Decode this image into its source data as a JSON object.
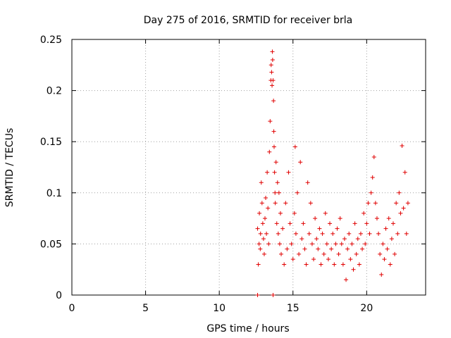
{
  "chart_data": {
    "type": "scatter",
    "title": "Day 275 of 2016, SRMTID for receiver brla",
    "xlabel": "GPS time / hours",
    "ylabel": "SRMTID / TECUs",
    "xlim": [
      0,
      24
    ],
    "ylim": [
      0,
      0.25
    ],
    "xticks": [
      0,
      5,
      10,
      15,
      20
    ],
    "xtick_labels": [
      "0",
      "5",
      "10",
      "15",
      "20"
    ],
    "yticks": [
      0,
      0.05,
      0.1,
      0.15,
      0.2,
      0.25
    ],
    "ytick_labels": [
      "0",
      "0.05",
      "0.1",
      "0.15",
      "0.2",
      "0.25"
    ],
    "grid": true,
    "legend": "none",
    "marker": "plus",
    "color": "#e00000",
    "series": [
      {
        "x": [
          12.6,
          12.6,
          12.65,
          12.7,
          12.72,
          12.78,
          12.8,
          12.85,
          12.9,
          12.95,
          13.0,
          13.05,
          13.1,
          13.15,
          13.2,
          13.25,
          13.3,
          13.35,
          13.4,
          13.45,
          13.5,
          13.52,
          13.55,
          13.58,
          13.6,
          13.62,
          13.65,
          13.65,
          13.68,
          13.7,
          13.72,
          13.75,
          13.78,
          13.8,
          13.85,
          13.9,
          13.95,
          14.0,
          14.05,
          14.1,
          14.15,
          14.2,
          14.3,
          14.4,
          14.5,
          14.6,
          14.7,
          14.8,
          14.9,
          15.0,
          15.1,
          15.15,
          15.2,
          15.3,
          15.4,
          15.5,
          15.6,
          15.7,
          15.8,
          15.9,
          16.0,
          16.1,
          16.2,
          16.3,
          16.4,
          16.5,
          16.6,
          16.7,
          16.8,
          16.9,
          17.0,
          17.1,
          17.2,
          17.3,
          17.4,
          17.5,
          17.6,
          17.7,
          17.8,
          17.9,
          18.0,
          18.1,
          18.2,
          18.3,
          18.4,
          18.5,
          18.6,
          18.7,
          18.8,
          18.9,
          19.0,
          19.1,
          19.2,
          19.3,
          19.4,
          19.5,
          19.6,
          19.7,
          19.8,
          19.9,
          20.0,
          20.1,
          20.2,
          20.3,
          20.4,
          20.5,
          20.6,
          20.7,
          20.8,
          20.9,
          21.0,
          21.1,
          21.2,
          21.3,
          21.4,
          21.5,
          21.6,
          21.7,
          21.8,
          21.9,
          22.0,
          22.1,
          22.2,
          22.3,
          22.4,
          22.5,
          22.6,
          22.7,
          22.8
        ],
        "y": [
          0.0,
          0.065,
          0.03,
          0.05,
          0.08,
          0.045,
          0.06,
          0.11,
          0.09,
          0.07,
          0.055,
          0.04,
          0.075,
          0.095,
          0.06,
          0.12,
          0.085,
          0.05,
          0.14,
          0.17,
          0.21,
          0.225,
          0.218,
          0.205,
          0.238,
          0.23,
          0.21,
          0.0,
          0.19,
          0.16,
          0.145,
          0.12,
          0.1,
          0.09,
          0.13,
          0.07,
          0.11,
          0.06,
          0.1,
          0.05,
          0.08,
          0.04,
          0.065,
          0.03,
          0.09,
          0.045,
          0.12,
          0.07,
          0.05,
          0.035,
          0.08,
          0.145,
          0.06,
          0.1,
          0.04,
          0.13,
          0.055,
          0.07,
          0.045,
          0.03,
          0.11,
          0.06,
          0.09,
          0.05,
          0.035,
          0.075,
          0.055,
          0.045,
          0.065,
          0.03,
          0.06,
          0.04,
          0.08,
          0.05,
          0.035,
          0.07,
          0.045,
          0.06,
          0.03,
          0.05,
          0.065,
          0.04,
          0.075,
          0.05,
          0.03,
          0.055,
          0.015,
          0.045,
          0.06,
          0.035,
          0.05,
          0.025,
          0.07,
          0.04,
          0.055,
          0.03,
          0.06,
          0.045,
          0.08,
          0.05,
          0.07,
          0.09,
          0.06,
          0.1,
          0.115,
          0.135,
          0.09,
          0.075,
          0.06,
          0.04,
          0.02,
          0.05,
          0.035,
          0.065,
          0.045,
          0.075,
          0.03,
          0.055,
          0.07,
          0.04,
          0.09,
          0.06,
          0.1,
          0.08,
          0.146,
          0.085,
          0.12,
          0.06,
          0.09
        ]
      }
    ]
  }
}
